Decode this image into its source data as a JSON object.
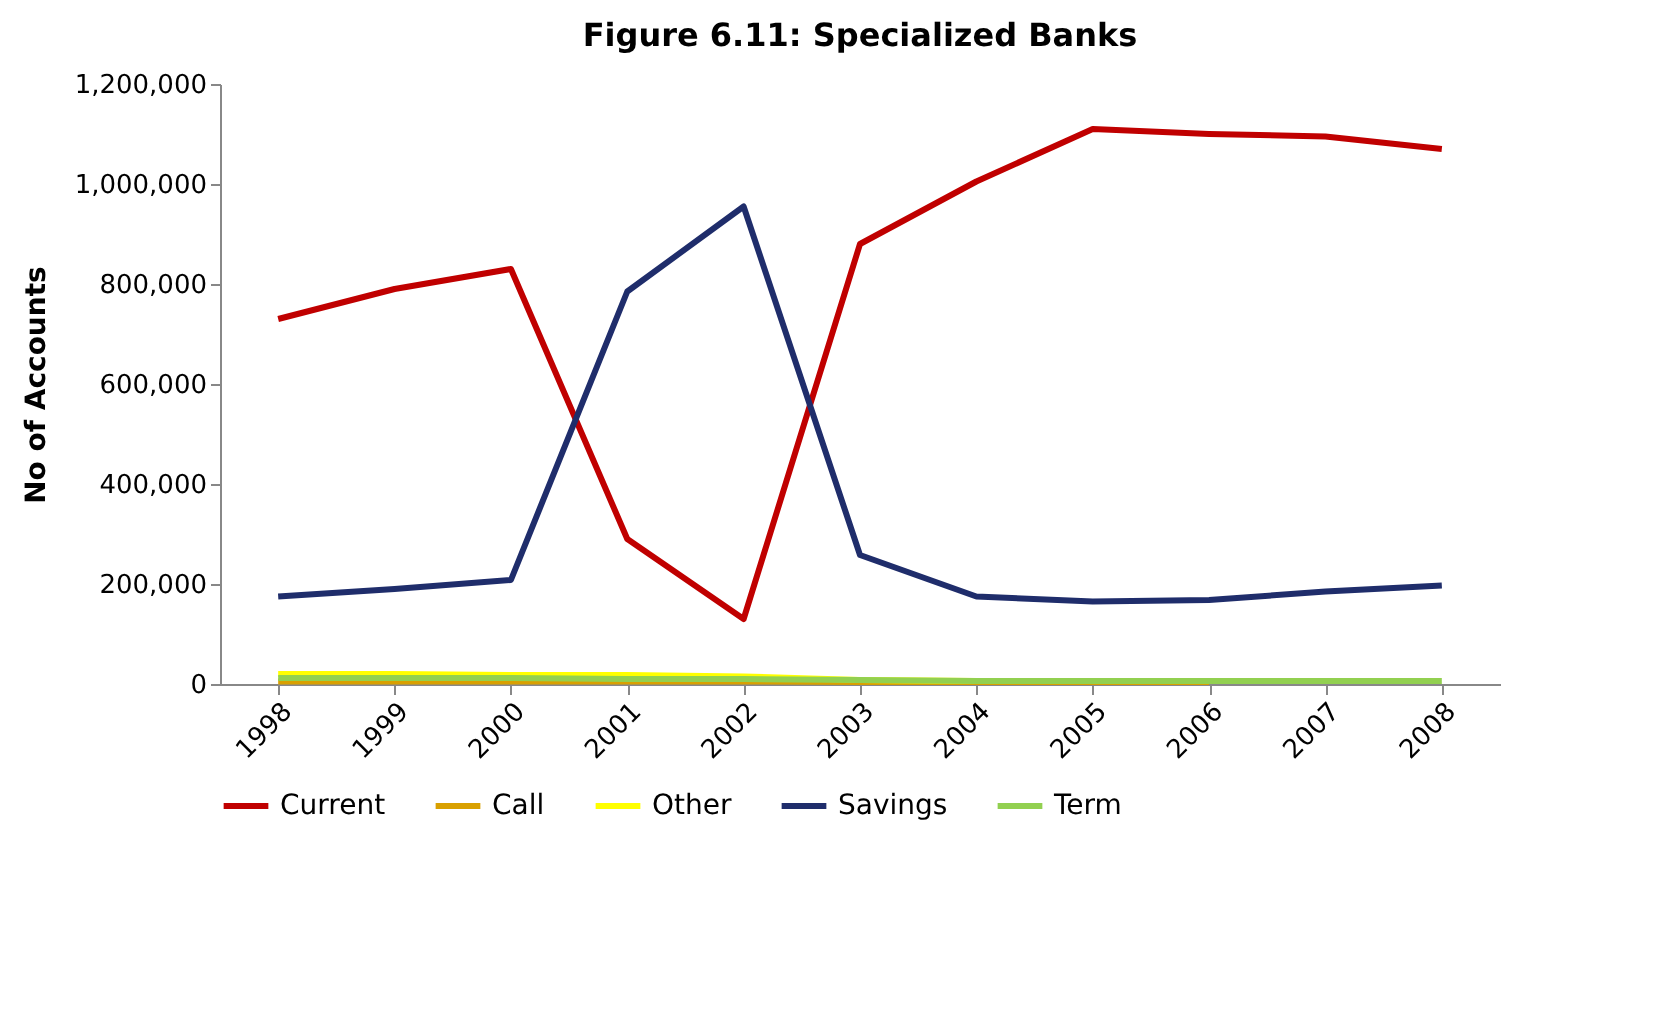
{
  "chart_data": {
    "type": "line",
    "title": "Figure 6.11: Specialized Banks",
    "ylabel": "No of Accounts",
    "categories": [
      "1998",
      "1999",
      "2000",
      "2001",
      "2002",
      "2003",
      "2004",
      "2005",
      "2006",
      "2007",
      "2008"
    ],
    "series": [
      {
        "name": "Current",
        "color": "#c00000",
        "values": [
          730000,
          790000,
          830000,
          290000,
          130000,
          880000,
          1005000,
          1110000,
          1100000,
          1095000,
          1070000
        ]
      },
      {
        "name": "Call",
        "color": "#d9a000",
        "values": [
          5000,
          5000,
          5000,
          5000,
          5000,
          4000,
          4000,
          4000,
          4000,
          null,
          null
        ]
      },
      {
        "name": "Other",
        "color": "#ffff00",
        "values": [
          20000,
          20000,
          18000,
          18000,
          15000,
          8000,
          6000,
          null,
          null,
          null,
          null
        ]
      },
      {
        "name": "Savings",
        "color": "#1f2d6b",
        "values": [
          175000,
          190000,
          208000,
          785000,
          955000,
          258000,
          175000,
          165000,
          168000,
          185000,
          197000
        ]
      },
      {
        "name": "Term",
        "color": "#92d050",
        "values": [
          12000,
          12000,
          12000,
          10000,
          10000,
          8000,
          6000,
          6000,
          6000,
          6000,
          6000
        ]
      }
    ],
    "ylim": [
      0,
      1200000
    ],
    "yticks": [
      0,
      {
        "value": 200000,
        "label": "200,000"
      },
      {
        "value": 400000,
        "label": "400,000"
      },
      {
        "value": 600000,
        "label": "600,000"
      },
      {
        "value": 800000,
        "label": "800,000"
      },
      {
        "value": 1000000,
        "label": "1,000,000"
      },
      {
        "value": 1200000,
        "label": "1,200,000"
      }
    ],
    "grid": false,
    "legend": "bottom",
    "marker": "none",
    "line_style": "solid"
  }
}
